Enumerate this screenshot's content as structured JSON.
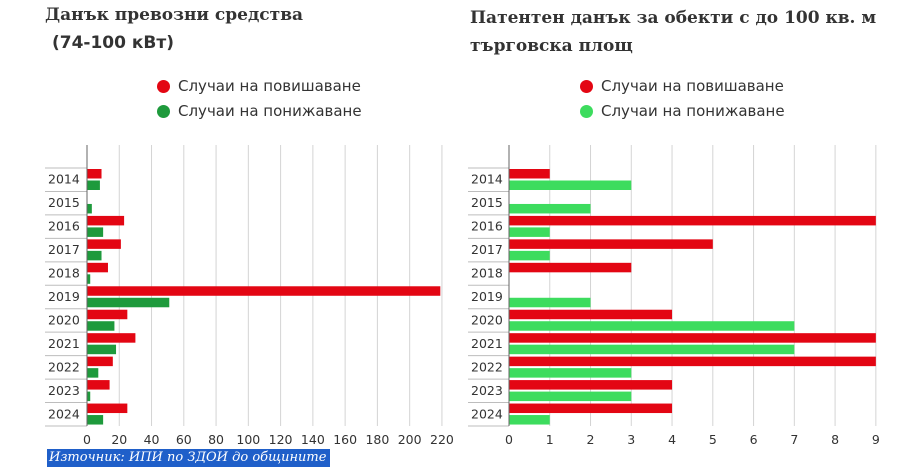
{
  "charts": [
    {
      "title_line1": "Данък превозни средства",
      "title_line2": "(74-100 кВт)",
      "legend": [
        {
          "label": "Случаи на повишаване",
          "color": "#e30613"
        },
        {
          "label": "Случаи на понижаване",
          "color": "#1e9a3c"
        }
      ]
    },
    {
      "title_line1": "Патентен данък за обекти с до 100 кв. м",
      "title_line2": "търговска площ",
      "legend": [
        {
          "label": "Случаи на повишаване",
          "color": "#e30613"
        },
        {
          "label": "Случаи на понижаване",
          "color": "#3ddc5e"
        }
      ]
    }
  ],
  "chart_data": [
    {
      "type": "bar",
      "orientation": "horizontal",
      "categories": [
        "2014",
        "2015",
        "2016",
        "2017",
        "2018",
        "2019",
        "2020",
        "2021",
        "2022",
        "2023",
        "2024"
      ],
      "series": [
        {
          "name": "Случаи на повишаване",
          "color": "#e30613",
          "values": [
            9,
            0,
            23,
            21,
            13,
            219,
            25,
            30,
            16,
            14,
            25
          ]
        },
        {
          "name": "Случаи на понижаване",
          "color": "#1e9a3c",
          "values": [
            8,
            3,
            10,
            9,
            2,
            51,
            17,
            18,
            7,
            2,
            10
          ]
        }
      ],
      "xlim": [
        0,
        225
      ],
      "xticks": [
        0,
        20,
        40,
        60,
        80,
        100,
        120,
        140,
        160,
        180,
        200,
        220
      ],
      "grid": true
    },
    {
      "type": "bar",
      "orientation": "horizontal",
      "categories": [
        "2014",
        "2015",
        "2016",
        "2017",
        "2018",
        "2019",
        "2020",
        "2021",
        "2022",
        "2023",
        "2024"
      ],
      "series": [
        {
          "name": "Случаи на повишаване",
          "color": "#e30613",
          "values": [
            1,
            0,
            9,
            5,
            3,
            0,
            4,
            9,
            9,
            4,
            4
          ]
        },
        {
          "name": "Случаи на понижаване",
          "color": "#3ddc5e",
          "values": [
            3,
            2,
            1,
            1,
            0,
            2,
            7,
            7,
            3,
            3,
            1
          ]
        }
      ],
      "xlim": [
        0,
        9.2
      ],
      "xticks": [
        0,
        1,
        2,
        3,
        4,
        5,
        6,
        7,
        8,
        9
      ],
      "grid": true
    }
  ],
  "source": "Източник: ИПИ по ЗДОИ до общините"
}
